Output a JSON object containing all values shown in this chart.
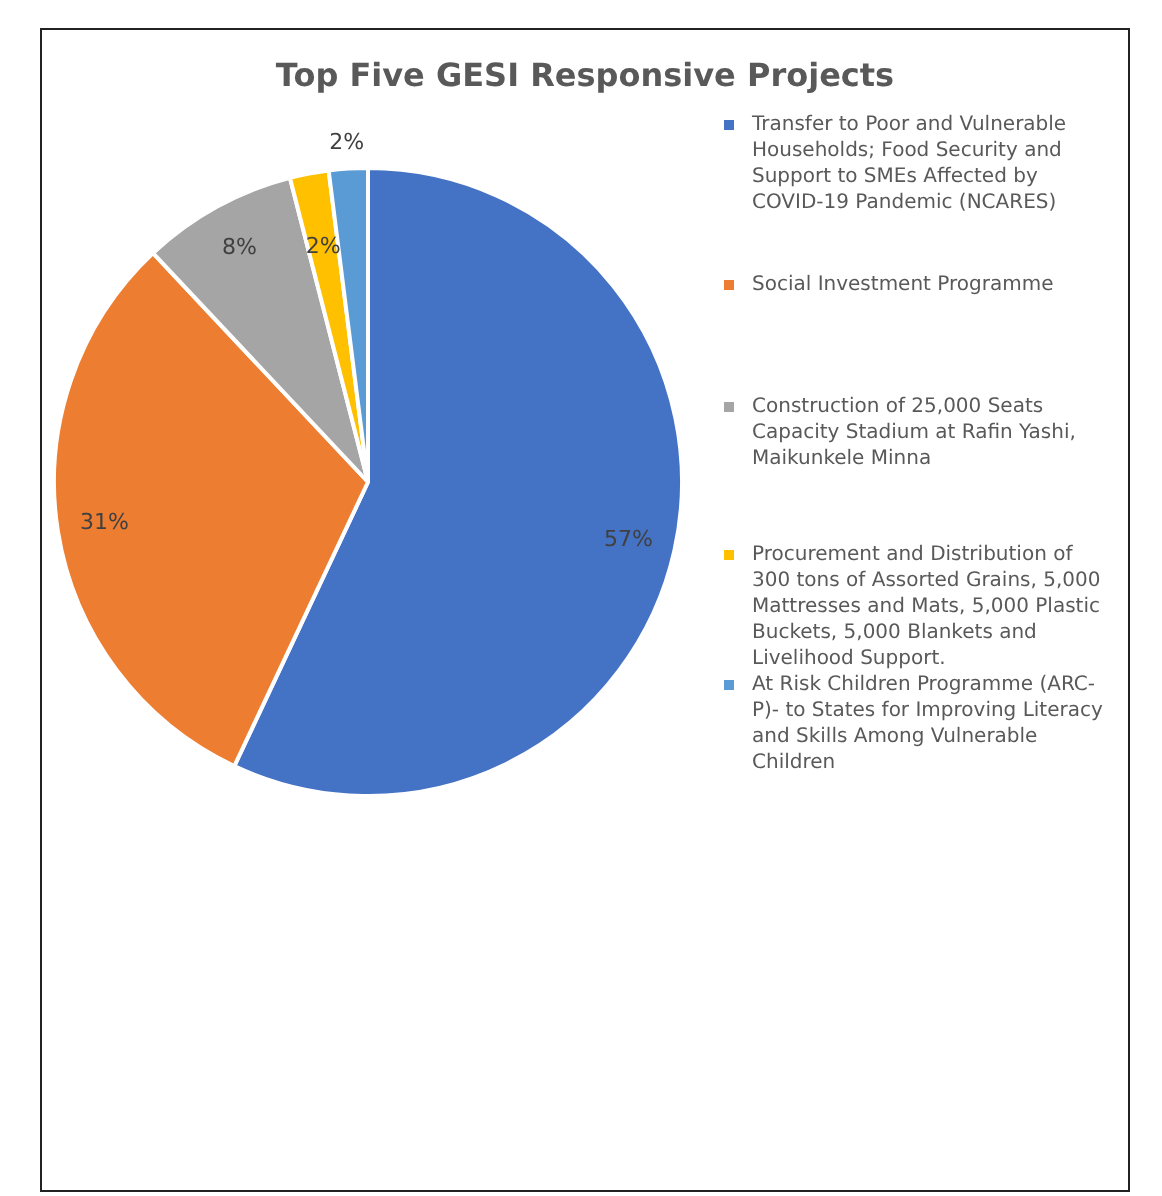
{
  "chart_data": {
    "type": "pie",
    "title": "Top Five GESI Responsive Projects",
    "categories": [
      "Transfer to Poor and Vulnerable Households; Food Security and Support to SMEs Affected by COVID-19 Pandemic (NCARES)",
      "Social Investment Programme",
      "Construction of 25,000 Seats Capacity Stadium at Rafin Yashi, Maikunkele Minna",
      "Procurement and  Distribution of 300 tons of Assorted Grains, 5,000 Mattresses and Mats, 5,000 Plastic Buckets, 5,000 Blankets and Livelihood Support.",
      "At Risk Children Programme (ARC-P)- to States for Improving Literacy and Skills Among Vulnerable Children"
    ],
    "values": [
      57,
      31,
      8,
      2,
      2
    ],
    "value_labels": [
      "57%",
      "31%",
      "8%",
      "2%",
      "2%"
    ],
    "colors": [
      "#4472c4",
      "#ed7d31",
      "#a5a5a5",
      "#ffc000",
      "#5b9bd5"
    ],
    "legend": "right"
  }
}
